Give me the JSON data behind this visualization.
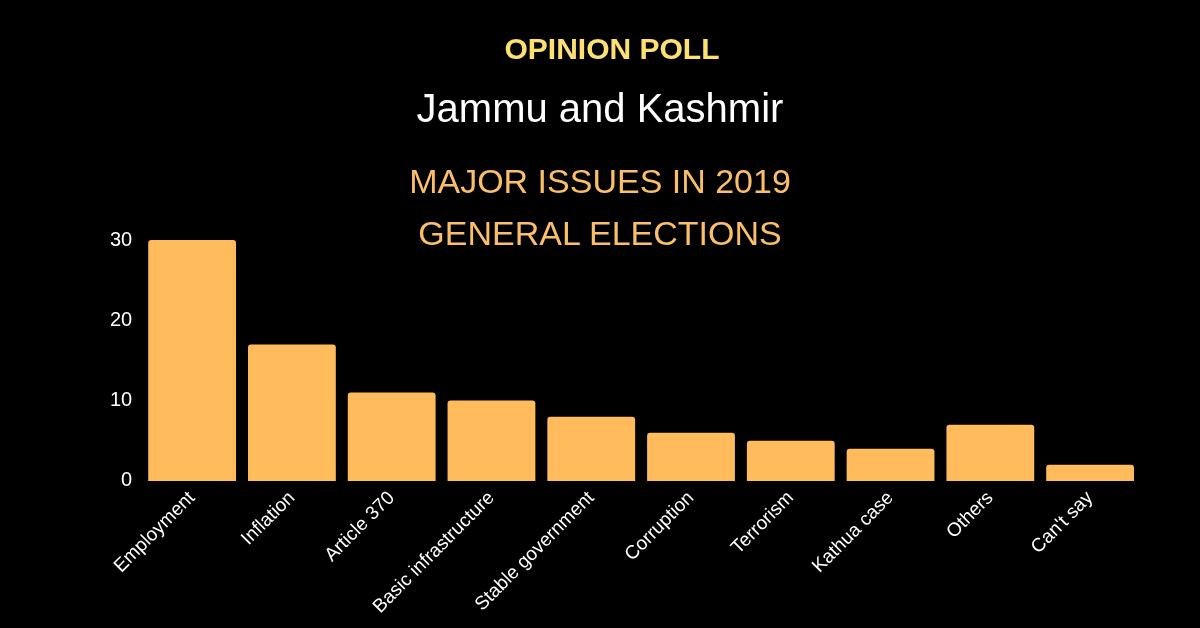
{
  "chart_data": {
    "type": "bar",
    "title": "OPINION POLL",
    "subtitle": "Jammu and Kashmir",
    "annotations": [
      "MAJOR ISSUES IN 2019\nGENERAL ELECTIONS"
    ],
    "categories": [
      "Employment",
      "Inflation",
      "Article 370",
      "Basic infrastructure",
      "Stable government",
      "Corruption",
      "Terrorism",
      "Kathua case",
      "Others",
      "Can't say"
    ],
    "values": [
      30,
      17,
      11,
      10,
      8,
      6,
      5,
      4,
      7,
      2
    ],
    "color": "#ffbb5c",
    "ylim": [
      0,
      30
    ],
    "yticks": [
      0,
      10,
      20,
      30
    ],
    "grid": false,
    "legend": false
  }
}
